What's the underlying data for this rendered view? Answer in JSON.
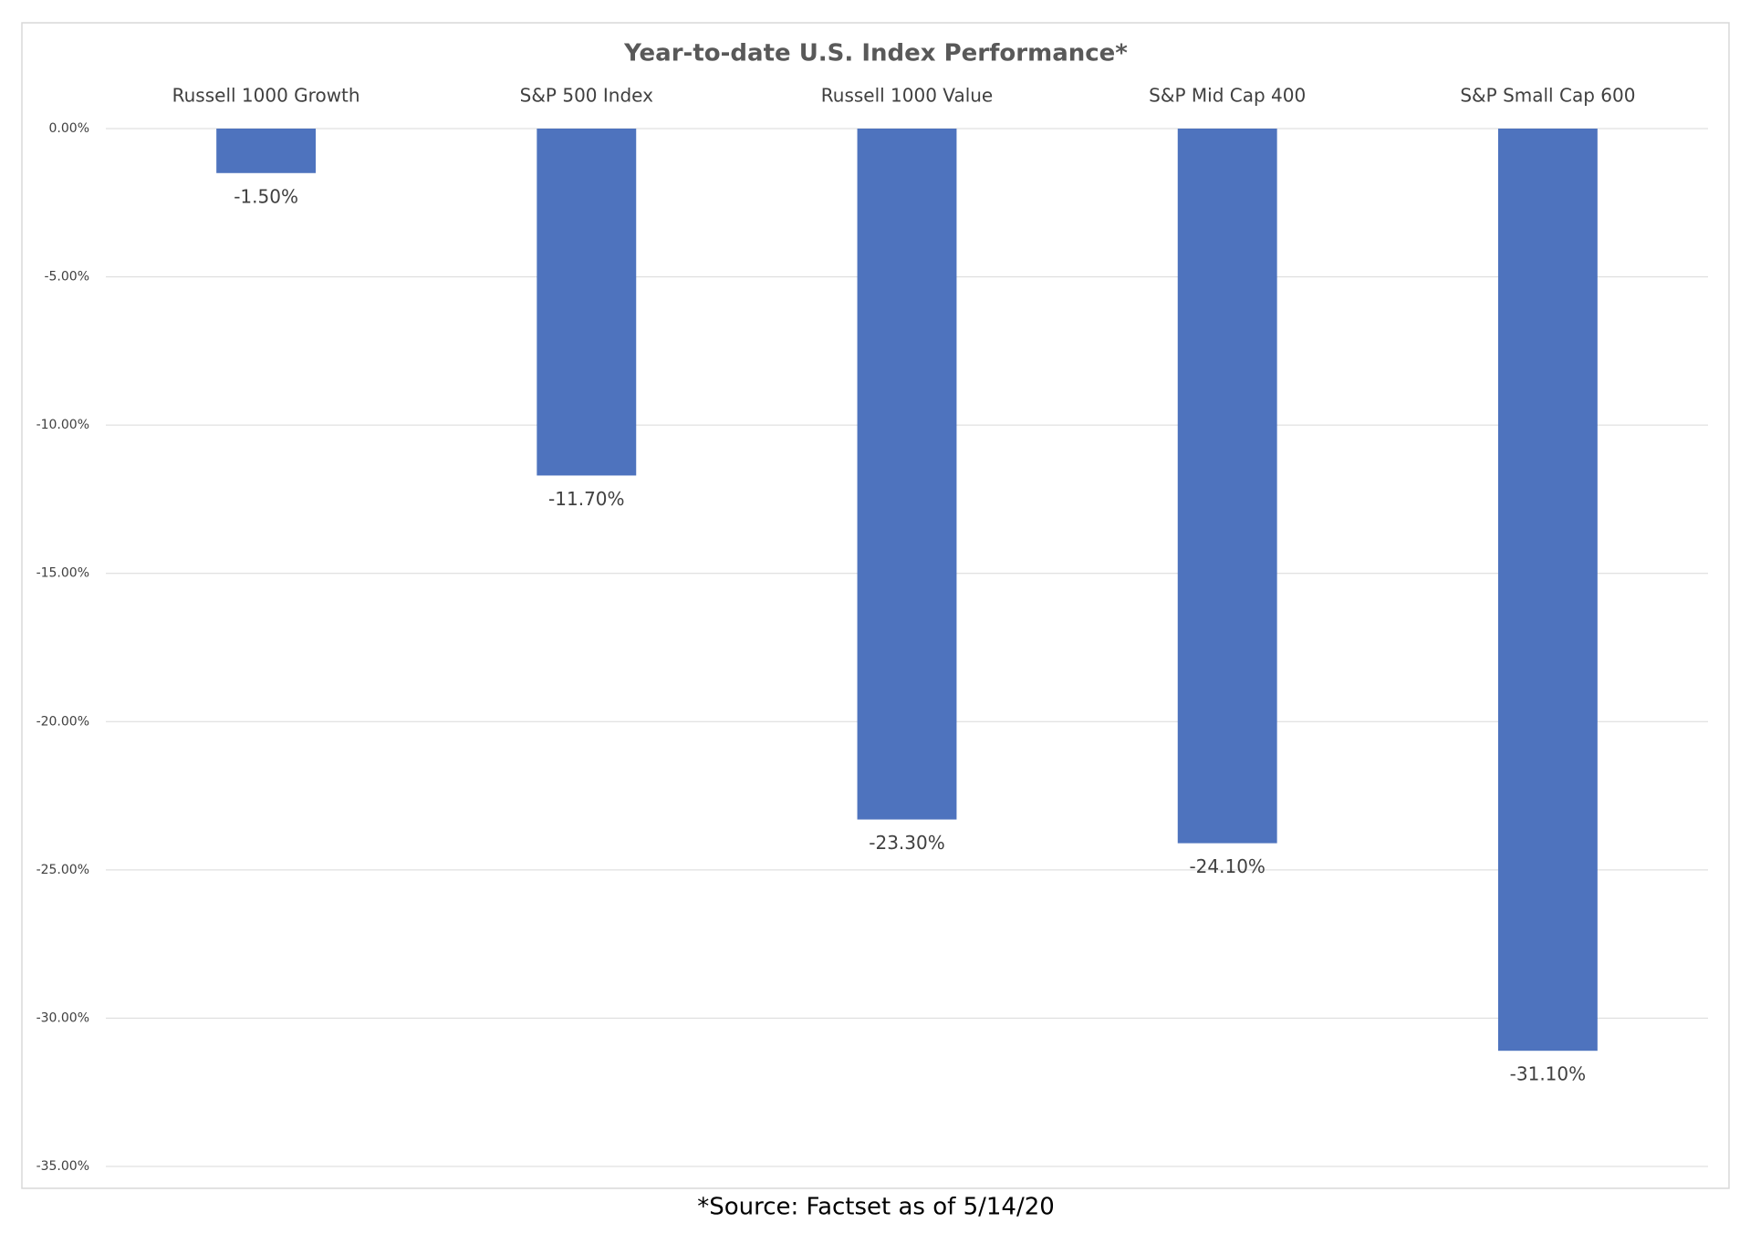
{
  "chart_data": {
    "type": "bar",
    "title": "Year-to-date U.S. Index Performance*",
    "source": "*Source: Factset as of 5/14/20",
    "categories": [
      "Russell 1000 Growth",
      "S&P 500 Index",
      "Russell 1000 Value",
      "S&P Mid Cap 400",
      "S&P Small Cap 600"
    ],
    "values": [
      -1.5,
      -11.7,
      -23.3,
      -24.1,
      -31.1
    ],
    "value_labels": [
      "-1.50%",
      "-11.70%",
      "-23.30%",
      "-24.10%",
      "-31.10%"
    ],
    "color": "#4e73be",
    "ylim": [
      -35,
      0
    ],
    "yticks": [
      {
        "value": 0,
        "label": "0.00%"
      },
      {
        "value": -5,
        "label": "-5.00%"
      },
      {
        "value": -10,
        "label": "-10.00%"
      },
      {
        "value": -15,
        "label": "-15.00%"
      },
      {
        "value": -20,
        "label": "-20.00%"
      },
      {
        "value": -25,
        "label": "-25.00%"
      },
      {
        "value": -30,
        "label": "-30.00%"
      },
      {
        "value": -35,
        "label": "-35.00%"
      }
    ],
    "grid": true
  }
}
